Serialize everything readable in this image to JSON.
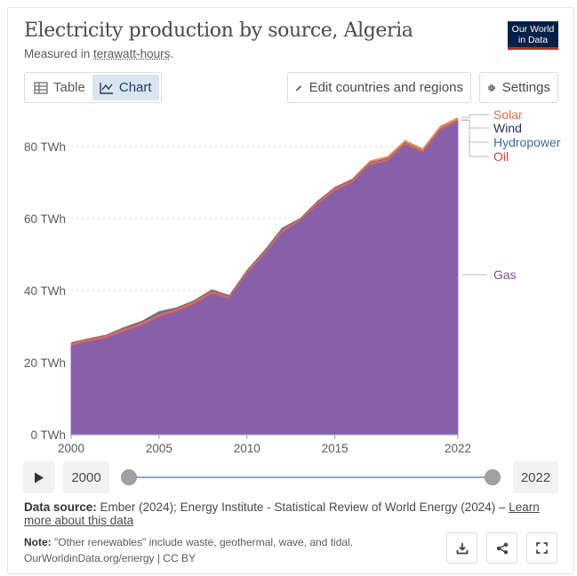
{
  "header": {
    "title": "Electricity production by source, Algeria",
    "subtitle_prefix": "Measured in ",
    "subtitle_unit": "terawatt-hours",
    "subtitle_suffix": "."
  },
  "logo": {
    "line1": "Our World",
    "line2": "in Data"
  },
  "tabs": {
    "table_label": "Table",
    "chart_label": "Chart",
    "active": "chart"
  },
  "toolbar": {
    "edit_label": "Edit countries and regions",
    "settings_label": "Settings"
  },
  "timeline": {
    "start_year": "2000",
    "end_year": "2022"
  },
  "footer": {
    "source_label": "Data source:",
    "source_text": " Ember (2024); Energy Institute - Statistical Review of World Energy (2024) – ",
    "learn_more": "Learn more about this data",
    "note_label": "Note:",
    "note_text": " \"Other renewables\" include waste, geothermal, wave, and tidal.",
    "credit": "OurWorldinData.org/energy | CC BY"
  },
  "colors": {
    "gas": "#8860a7",
    "oil": "#d16358",
    "hydropower": "#3c6ea5",
    "wind": "#1b2f5a",
    "solar": "#e5845b",
    "gas_label": "#7a4f96",
    "oil_label": "#c0463c",
    "hydro_label": "#3a6aa3",
    "wind_label": "#1b2f5a",
    "solar_label": "#d76d4e"
  },
  "chart_data": {
    "type": "area",
    "stacked": true,
    "x": [
      2000,
      2001,
      2002,
      2003,
      2004,
      2005,
      2006,
      2007,
      2008,
      2009,
      2010,
      2011,
      2012,
      2013,
      2014,
      2015,
      2016,
      2017,
      2018,
      2019,
      2020,
      2021,
      2022
    ],
    "series": [
      {
        "name": "Gas",
        "values": [
          24.8,
          25.9,
          26.9,
          28.7,
          30.4,
          32.7,
          34.3,
          36.3,
          39.2,
          37.8,
          44.8,
          50.1,
          56.2,
          59.3,
          63.9,
          67.8,
          70.1,
          75.0,
          76.0,
          80.6,
          78.3,
          84.6,
          86.9
        ]
      },
      {
        "name": "Oil",
        "values": [
          0.7,
          0.7,
          0.7,
          0.8,
          0.8,
          0.9,
          0.8,
          0.8,
          0.8,
          0.6,
          0.7,
          0.7,
          0.8,
          0.6,
          0.7,
          0.8,
          0.7,
          0.6,
          0.6,
          0.5,
          0.4,
          0.4,
          0.4
        ]
      },
      {
        "name": "Hydropower",
        "values": [
          0.1,
          0.1,
          0.1,
          0.3,
          0.3,
          0.6,
          0.2,
          0.2,
          0.3,
          0.3,
          0.2,
          0.4,
          0.4,
          0.1,
          0.2,
          0.1,
          0.1,
          0.1,
          0.1,
          0.1,
          0.1,
          0.1,
          0.1
        ]
      },
      {
        "name": "Wind",
        "values": [
          0,
          0,
          0,
          0,
          0,
          0,
          0,
          0,
          0,
          0,
          0,
          0,
          0,
          0,
          0.02,
          0.03,
          0.02,
          0.02,
          0.02,
          0.01,
          0.01,
          0.01,
          0.01
        ]
      },
      {
        "name": "Solar",
        "values": [
          0,
          0,
          0,
          0,
          0,
          0,
          0,
          0,
          0,
          0,
          0,
          0,
          0.01,
          0.02,
          0.06,
          0.06,
          0.2,
          0.4,
          0.6,
          0.6,
          0.7,
          0.7,
          0.7
        ]
      }
    ],
    "y_ticks": [
      "0 TWh",
      "20 TWh",
      "40 TWh",
      "60 TWh",
      "80 TWh"
    ],
    "y_tick_values": [
      0,
      20,
      40,
      60,
      80
    ],
    "x_ticks": [
      "2000",
      "2005",
      "2010",
      "2015",
      "2022"
    ],
    "x_tick_values": [
      2000,
      2005,
      2010,
      2015,
      2022
    ],
    "ylim": [
      0,
      90
    ],
    "xlim": [
      2000,
      2022
    ],
    "grid": "horizontal dashed",
    "legend": "right, inline labels"
  }
}
